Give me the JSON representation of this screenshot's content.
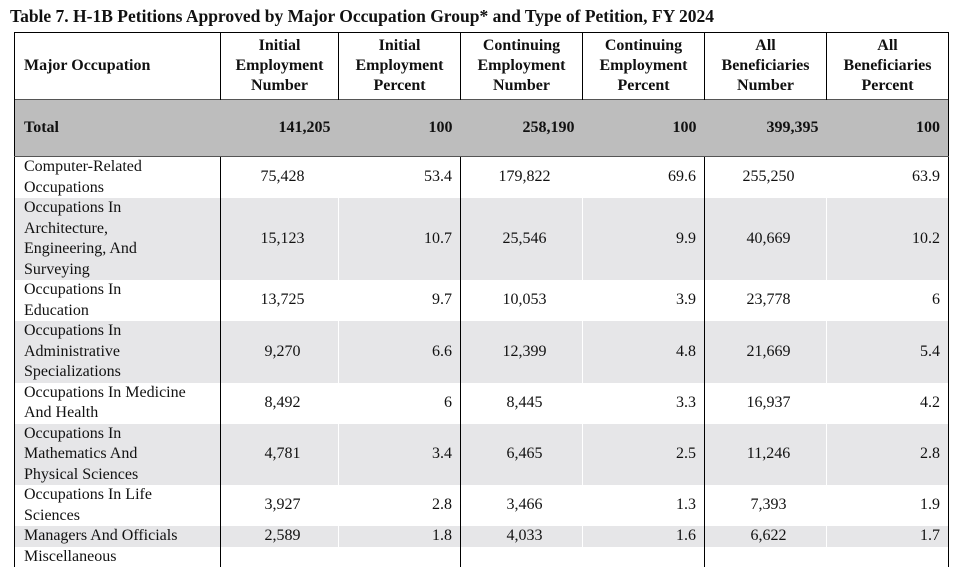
{
  "caption": "Table 7. H-1B Petitions Approved by Major Occupation Group* and Type of Petition, FY 2024",
  "headers": [
    {
      "lines": [
        "Major Occupation"
      ]
    },
    {
      "lines": [
        "Initial",
        "Employment",
        "Number"
      ]
    },
    {
      "lines": [
        "Initial",
        "Employment",
        "Percent"
      ]
    },
    {
      "lines": [
        "Continuing",
        "Employment",
        "Number"
      ]
    },
    {
      "lines": [
        "Continuing",
        "Employment",
        "Percent"
      ]
    },
    {
      "lines": [
        "All",
        "Beneficiaries",
        "Number"
      ]
    },
    {
      "lines": [
        "All",
        "Beneficiaries",
        "Percent"
      ]
    }
  ],
  "total": [
    "Total",
    "141,205",
    "100",
    "258,190",
    "100",
    "399,395",
    "100"
  ],
  "rows": [
    {
      "label": [
        "Computer-Related",
        "Occupations"
      ],
      "values": [
        "75,428",
        "53.4",
        "179,822",
        "69.6",
        "255,250",
        "63.9"
      ]
    },
    {
      "label": [
        "Occupations In",
        "Architecture,",
        "Engineering, And",
        "Surveying"
      ],
      "values": [
        "15,123",
        "10.7",
        "25,546",
        "9.9",
        "40,669",
        "10.2"
      ]
    },
    {
      "label": [
        "Occupations In",
        "Education"
      ],
      "values": [
        "13,725",
        "9.7",
        "10,053",
        "3.9",
        "23,778",
        "6"
      ]
    },
    {
      "label": [
        "Occupations In",
        "Administrative",
        "Specializations"
      ],
      "values": [
        "9,270",
        "6.6",
        "12,399",
        "4.8",
        "21,669",
        "5.4"
      ]
    },
    {
      "label": [
        "Occupations In Medicine",
        "And Health"
      ],
      "values": [
        "8,492",
        "6",
        "8,445",
        "3.3",
        "16,937",
        "4.2"
      ]
    },
    {
      "label": [
        "Occupations In",
        "Mathematics And",
        "Physical Sciences"
      ],
      "values": [
        "4,781",
        "3.4",
        "6,465",
        "2.5",
        "11,246",
        "2.8"
      ]
    },
    {
      "label": [
        "Occupations In Life",
        "Sciences"
      ],
      "values": [
        "3,927",
        "2.8",
        "3,466",
        "1.3",
        "7,393",
        "1.9"
      ]
    },
    {
      "label": [
        "Managers And Officials"
      ],
      "values": [
        "2,589",
        "1.8",
        "4,033",
        "1.6",
        "6,622",
        "1.7"
      ]
    },
    {
      "label": [
        "Miscellaneous"
      ],
      "values": [
        "",
        "",
        "",
        "",
        "",
        ""
      ]
    }
  ]
}
